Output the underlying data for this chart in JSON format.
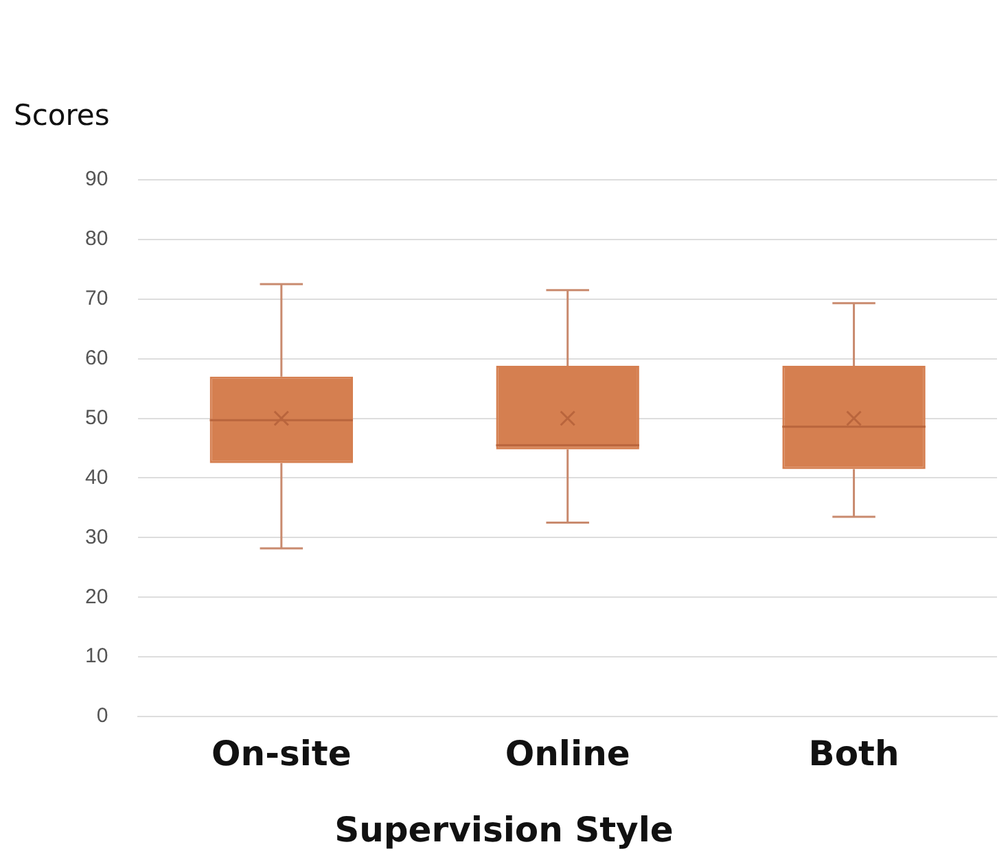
{
  "chart_data": {
    "type": "box",
    "ylabel": "Scores",
    "xlabel": "Supervision Style",
    "categories": [
      "On-site",
      "Online",
      "Both"
    ],
    "color": "#d57f50",
    "ylim": [
      0,
      90
    ],
    "yticks": [
      0,
      10,
      20,
      30,
      40,
      50,
      60,
      70,
      80,
      90
    ],
    "grid": "y",
    "legend": false,
    "boxes": [
      {
        "low": 28.2,
        "q1": 42.5,
        "median": 49.7,
        "q3": 57,
        "high": 72.5,
        "mean": 50
      },
      {
        "low": 32.5,
        "q1": 44.8,
        "median": 45.5,
        "q3": 58.8,
        "high": 71.5,
        "mean": 50
      },
      {
        "low": 33.5,
        "q1": 41.5,
        "median": 48.6,
        "q3": 58.8,
        "high": 69.3,
        "mean": 50
      }
    ]
  }
}
